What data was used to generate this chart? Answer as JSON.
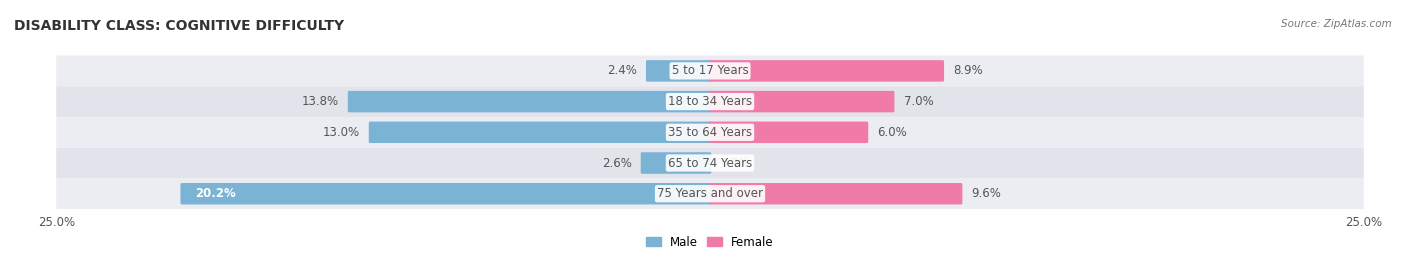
{
  "title": "DISABILITY CLASS: COGNITIVE DIFFICULTY",
  "source": "Source: ZipAtlas.com",
  "categories": [
    "5 to 17 Years",
    "18 to 34 Years",
    "35 to 64 Years",
    "65 to 74 Years",
    "75 Years and over"
  ],
  "male_values": [
    2.4,
    13.8,
    13.0,
    2.6,
    20.2
  ],
  "female_values": [
    8.9,
    7.0,
    6.0,
    0.0,
    9.6
  ],
  "x_max": 25.0,
  "male_color": "#7ab3d4",
  "female_color": "#f07aa8",
  "male_color_bright": "#5b9bd5",
  "female_color_bright": "#f06292",
  "row_bg_colors": [
    "#ecedf3",
    "#e2e3eb"
  ],
  "title_fontsize": 10,
  "label_fontsize": 8.5,
  "tick_fontsize": 8.5,
  "text_color": "#555555",
  "white_text_threshold": 15.0
}
